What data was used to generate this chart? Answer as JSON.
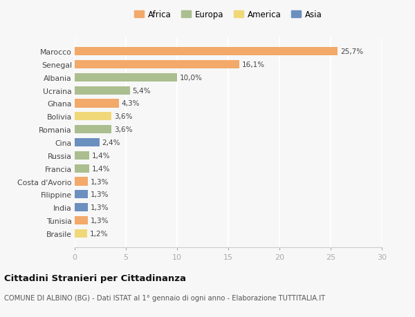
{
  "countries": [
    "Marocco",
    "Senegal",
    "Albania",
    "Ucraina",
    "Ghana",
    "Bolivia",
    "Romania",
    "Cina",
    "Russia",
    "Francia",
    "Costa d'Avorio",
    "Filippine",
    "India",
    "Tunisia",
    "Brasile"
  ],
  "values": [
    25.7,
    16.1,
    10.0,
    5.4,
    4.3,
    3.6,
    3.6,
    2.4,
    1.4,
    1.4,
    1.3,
    1.3,
    1.3,
    1.3,
    1.2
  ],
  "labels": [
    "25,7%",
    "16,1%",
    "10,0%",
    "5,4%",
    "4,3%",
    "3,6%",
    "3,6%",
    "2,4%",
    "1,4%",
    "1,4%",
    "1,3%",
    "1,3%",
    "1,3%",
    "1,3%",
    "1,2%"
  ],
  "continents": [
    "Africa",
    "Africa",
    "Europa",
    "Europa",
    "Africa",
    "America",
    "Europa",
    "Asia",
    "Europa",
    "Europa",
    "Africa",
    "Asia",
    "Asia",
    "Africa",
    "America"
  ],
  "colors": {
    "Africa": "#F2A96A",
    "Europa": "#ABBE8F",
    "America": "#F0D878",
    "Asia": "#6B8FBF"
  },
  "legend_order": [
    "Africa",
    "Europa",
    "America",
    "Asia"
  ],
  "xlim": [
    0,
    30
  ],
  "xticks": [
    0,
    5,
    10,
    15,
    20,
    25,
    30
  ],
  "title": "Cittadini Stranieri per Cittadinanza",
  "subtitle": "COMUNE DI ALBINO (BG) - Dati ISTAT al 1° gennaio di ogni anno - Elaborazione TUTTITALIA.IT",
  "background_color": "#f7f7f7",
  "bar_height": 0.65
}
